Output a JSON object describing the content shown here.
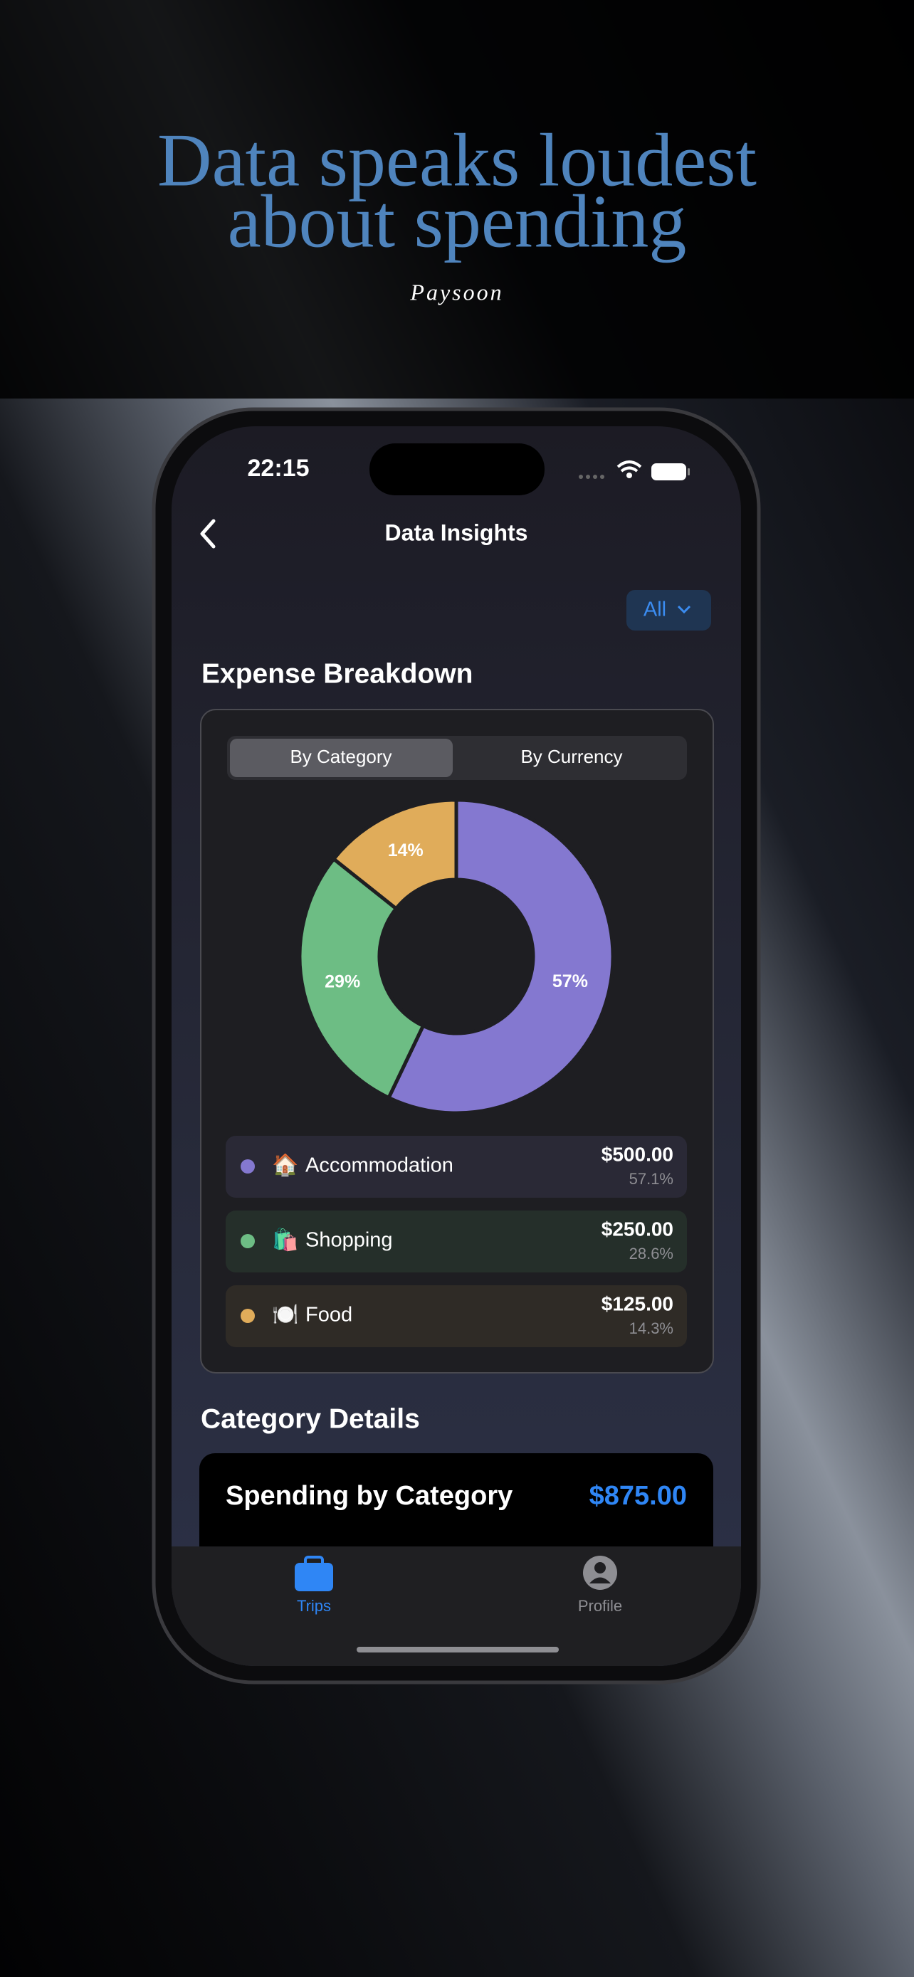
{
  "header": {
    "title_line1": "Data speaks loudest",
    "title_line2": "about spending",
    "brand": "Paysoon"
  },
  "status_bar": {
    "time": "22:15"
  },
  "nav": {
    "title": "Data Insights",
    "filter": "All"
  },
  "section_title": "Expense Breakdown",
  "segments": [
    "By Category",
    "By Currency"
  ],
  "chart_data": {
    "type": "donut",
    "categories": [
      "Accommodation",
      "Shopping",
      "Food"
    ],
    "values": [
      57.1,
      28.6,
      14.3
    ],
    "value_labels": [
      "57%",
      "29%",
      "14%"
    ],
    "colors": [
      "#8478d0",
      "#6dbd84",
      "#e0ac5a"
    ]
  },
  "breakdown": {
    "items": [
      {
        "icon": "🏠",
        "amount": "$500.00",
        "share": "57.1%"
      },
      {
        "icon": "🛍️",
        "amount": "$250.00",
        "share": "28.6%"
      },
      {
        "icon": "🍽️",
        "amount": "$125.00",
        "share": "14.3%"
      }
    ]
  },
  "details": {
    "title": "Category Details",
    "card_title": "Spending by Category",
    "total": "$875.00"
  },
  "tabs": [
    "Trips",
    "Profile"
  ]
}
